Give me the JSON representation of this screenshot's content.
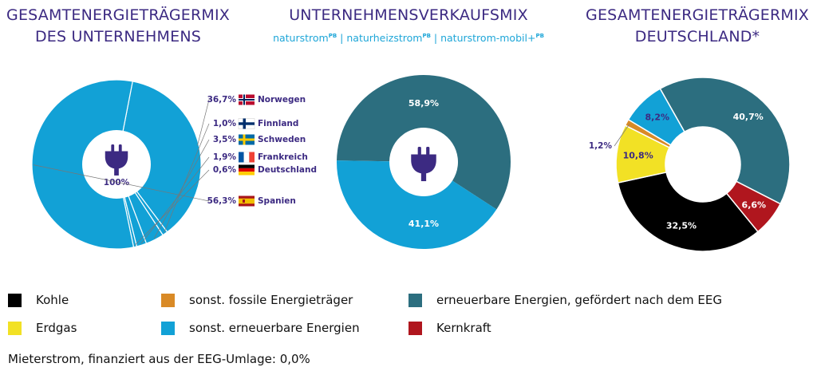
{
  "titles": {
    "left": [
      "GESAMTENERGIETRÄGERMIX",
      "DES UNTERNEHMENS"
    ],
    "middle": [
      "UNTERNEHMENSVERKAUFSMIX"
    ],
    "right": [
      "GESAMTENERGIETRÄGERMIX",
      "DEUTSCHLAND*"
    ]
  },
  "subtitle": {
    "part1": "naturstrom",
    "sup1": "PB",
    "sep1": " | ",
    "part2": "naturheizstrom",
    "sup2": "PB",
    "sep2": " | ",
    "part3": "naturstrom-mobil+",
    "sup3": "PB"
  },
  "icons": {
    "center_icon": "plug-icon"
  },
  "colors": {
    "kohle": "#000000",
    "fossil": "#d98a26",
    "eeg": "#2c6e7f",
    "erdgas": "#f2e125",
    "erneuerbar": "#12a1d6",
    "kernkraft": "#b0161e",
    "label_dark": "#3c2a82"
  },
  "chart_data": [
    {
      "type": "pie",
      "title": "GESAMTENERGIETRÄGERMIX DES UNTERNEHMENS",
      "center_label": "100%",
      "slices": [
        {
          "label": "Norwegen",
          "value": 36.7,
          "value_label": "36,7%",
          "flag": "norway-flag-icon",
          "color_key": "erneuerbar"
        },
        {
          "label": "Finnland",
          "value": 1.0,
          "value_label": "1,0%",
          "flag": "finland-flag-icon",
          "color_key": "erneuerbar"
        },
        {
          "label": "Schweden",
          "value": 3.5,
          "value_label": "3,5%",
          "flag": "sweden-flag-icon",
          "color_key": "erneuerbar"
        },
        {
          "label": "Frankreich",
          "value": 1.9,
          "value_label": "1,9%",
          "flag": "france-flag-icon",
          "color_key": "erneuerbar"
        },
        {
          "label": "Deutschland",
          "value": 0.6,
          "value_label": "0,6%",
          "flag": "germany-flag-icon",
          "color_key": "erneuerbar"
        },
        {
          "label": "Spanien",
          "value": 56.3,
          "value_label": "56,3%",
          "flag": "spain-flag-icon",
          "color_key": "erneuerbar"
        }
      ]
    },
    {
      "type": "pie",
      "title": "UNTERNEHMENSVERKAUFSMIX",
      "slices": [
        {
          "label": "erneuerbare Energien, gefördert nach dem EEG",
          "value": 58.9,
          "value_label": "58,9%",
          "color_key": "eeg"
        },
        {
          "label": "sonst. erneuerbare Energien",
          "value": 41.1,
          "value_label": "41,1%",
          "color_key": "erneuerbar"
        }
      ]
    },
    {
      "type": "pie",
      "title": "GESAMTENERGIETRÄGERMIX DEUTSCHLAND*",
      "slices": [
        {
          "label": "erneuerbare Energien, gefördert nach dem EEG",
          "value": 40.7,
          "value_label": "40,7%",
          "color_key": "eeg"
        },
        {
          "label": "Kernkraft",
          "value": 6.6,
          "value_label": "6,6%",
          "color_key": "kernkraft"
        },
        {
          "label": "Kohle",
          "value": 32.5,
          "value_label": "32,5%",
          "color_key": "kohle"
        },
        {
          "label": "Erdgas",
          "value": 10.8,
          "value_label": "10,8%",
          "color_key": "erdgas"
        },
        {
          "label": "sonst. fossile Energieträger",
          "value": 1.2,
          "value_label": "1,2%",
          "color_key": "fossil"
        },
        {
          "label": "sonst. erneuerbare Energien",
          "value": 8.2,
          "value_label": "8,2%",
          "color_key": "erneuerbar"
        }
      ]
    }
  ],
  "legend": [
    {
      "label": "Kohle",
      "color_key": "kohle"
    },
    {
      "label": "sonst. fossile Energieträger",
      "color_key": "fossil"
    },
    {
      "label": "erneuerbare Energien, gefördert nach dem EEG",
      "color_key": "eeg"
    },
    {
      "label": "Erdgas",
      "color_key": "erdgas"
    },
    {
      "label": "sonst. erneuerbare Energien",
      "color_key": "erneuerbar"
    },
    {
      "label": "Kernkraft",
      "color_key": "kernkraft"
    }
  ],
  "footnote": "Mieterstrom, finanziert aus der EEG-Umlage: 0,0%"
}
